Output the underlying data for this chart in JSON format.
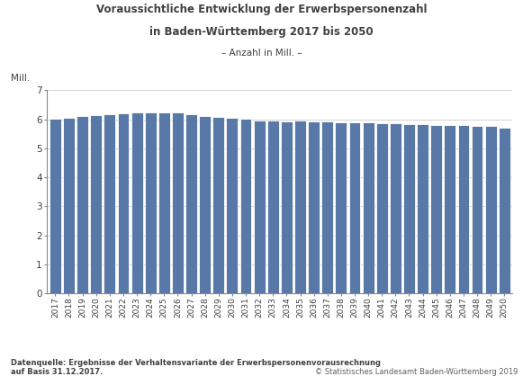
{
  "title_line1": "Voraussichtliche Entwicklung der Erwerbspersonenzahl",
  "title_line2": "in Baden-Württemberg 2017 bis 2050",
  "subtitle": "– Anzahl in Mill. –",
  "mill_label": "Mill.",
  "bar_color": "#5878a8",
  "ylim": [
    0,
    7
  ],
  "yticks": [
    0,
    1,
    2,
    3,
    4,
    5,
    6,
    7
  ],
  "years": [
    2017,
    2018,
    2019,
    2020,
    2021,
    2022,
    2023,
    2024,
    2025,
    2026,
    2027,
    2028,
    2029,
    2030,
    2031,
    2032,
    2033,
    2034,
    2035,
    2036,
    2037,
    2038,
    2039,
    2040,
    2041,
    2042,
    2043,
    2044,
    2045,
    2046,
    2047,
    2048,
    2049,
    2050
  ],
  "values": [
    6.01,
    6.06,
    6.12,
    6.15,
    6.17,
    6.2,
    6.22,
    6.24,
    6.25,
    6.22,
    6.16,
    6.11,
    6.07,
    6.05,
    6.01,
    5.97,
    5.95,
    5.94,
    5.95,
    5.93,
    5.91,
    5.9,
    5.89,
    5.88,
    5.86,
    5.85,
    5.84,
    5.83,
    5.81,
    5.8,
    5.79,
    5.78,
    5.77,
    5.72
  ],
  "footnote_left": "Datenquelle: Ergebnisse der Verhaltensvariante der Erwerbspersonenvorausrechnung\nauf Basis 31.12.2017.",
  "footnote_right": "© Statistisches Landesamt Baden-Württemberg 2019",
  "background_color": "#ffffff",
  "plot_bg_color": "#ffffff",
  "grid_color": "#cccccc",
  "title_color": "#404040",
  "text_color": "#404040",
  "bar_edge_color": "#ffffff",
  "axis_color": "#888888"
}
